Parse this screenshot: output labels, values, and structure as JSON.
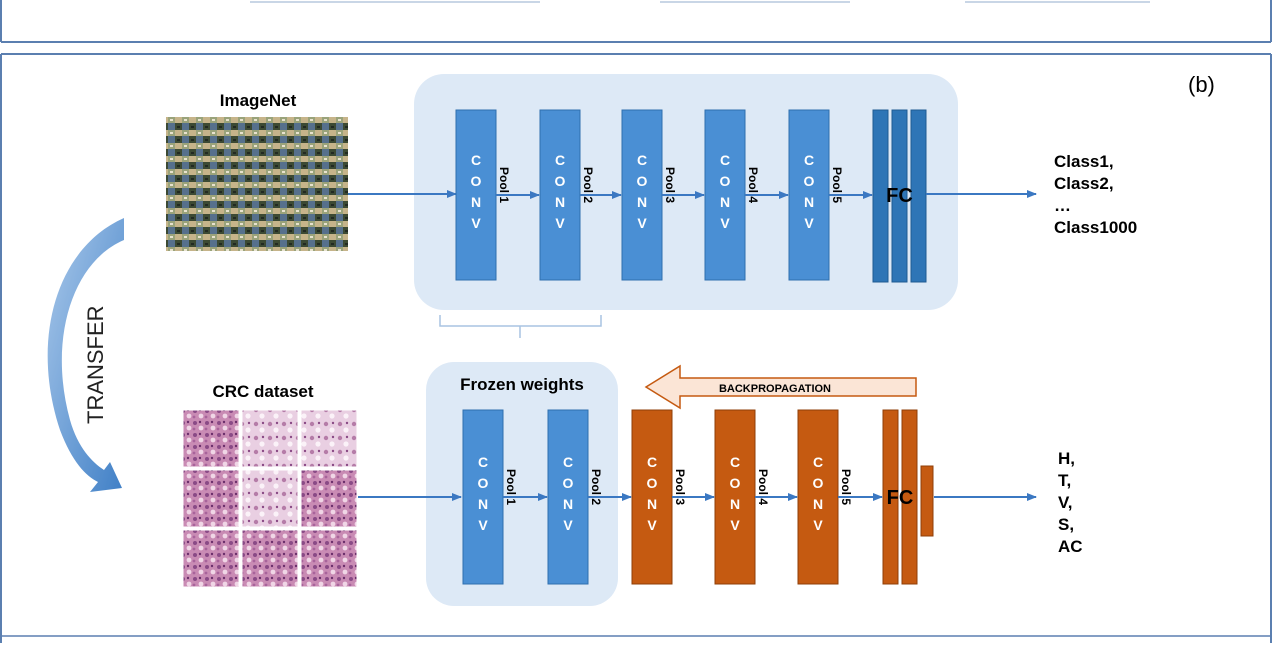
{
  "panel_label": "(b)",
  "colors": {
    "frame": "#5b7fb0",
    "group_bg": "#dde9f6",
    "conv_blue": "#4a8fd4",
    "conv_blue_stroke": "#2f6fae",
    "conv_orange": "#c55a11",
    "conv_orange_stroke": "#8f3f08",
    "fc_blue": "#2e75b6",
    "arrow": "#3b78c2",
    "backprop_fill": "#fbe5d6",
    "backprop_stroke": "#c55a11"
  },
  "top": {
    "dataset_label": "ImageNet",
    "conv_letters": [
      "C",
      "O",
      "N",
      "V"
    ],
    "pools": [
      "Pool 1",
      "Pool 2",
      "Pool 3",
      "Pool 4",
      "Pool 5"
    ],
    "fc_label": "FC",
    "outputs": [
      "Class1,",
      "Class2,",
      "…",
      "Class1000"
    ]
  },
  "transfer_label": "TRANSFER",
  "bottom": {
    "dataset_label": "CRC dataset",
    "frozen_label": "Frozen weights",
    "backprop_label": "BACKPROPAGATION",
    "conv_letters": [
      "C",
      "O",
      "N",
      "V"
    ],
    "pools": [
      "Pool 1",
      "Pool 2",
      "Pool 3",
      "Pool 4",
      "Pool 5"
    ],
    "fc_label": "FC",
    "outputs": [
      "H,",
      "T,",
      "V,",
      "S,",
      "AC"
    ]
  }
}
